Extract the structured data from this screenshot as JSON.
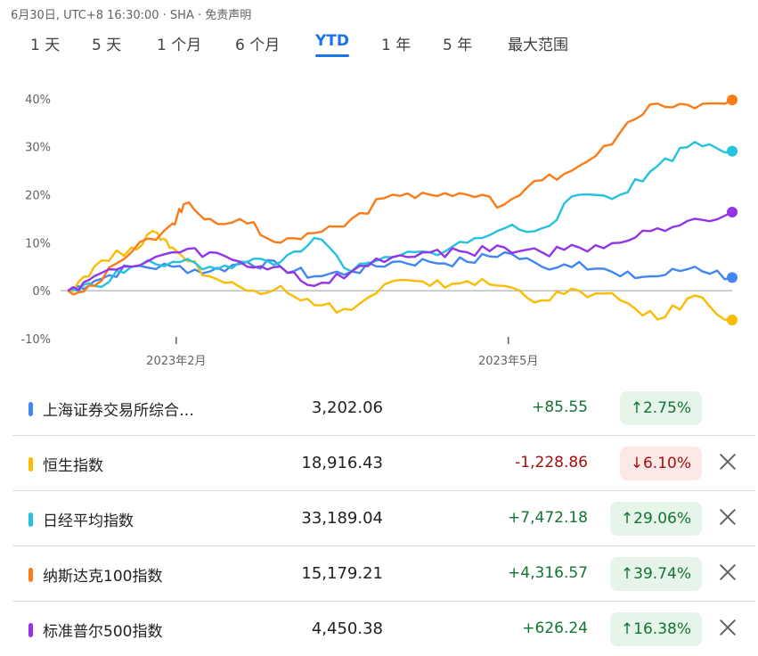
{
  "header": {
    "timestamp": "6月30日, UTC+8 16:30:00 · SHA · 免责声明"
  },
  "tabs": [
    {
      "label": "1 天",
      "active": false
    },
    {
      "label": "5 天",
      "active": false
    },
    {
      "label": "1 个月",
      "active": false
    },
    {
      "label": "6 个月",
      "active": false
    },
    {
      "label": "YTD",
      "active": true
    },
    {
      "label": "1 年",
      "active": false
    },
    {
      "label": "5 年",
      "active": false
    },
    {
      "label": "最大范围",
      "active": false
    }
  ],
  "chart_data": {
    "type": "line",
    "title": "",
    "xlabel": "",
    "ylabel": "",
    "x_ticks": [
      "2023年2月",
      "2023年5月"
    ],
    "y_ticks": [
      "40%",
      "30%",
      "20%",
      "10%",
      "0%",
      "-10%"
    ],
    "ylim": [
      -10,
      42
    ],
    "x_range": [
      "2023-01-01",
      "2023-06-30"
    ],
    "grid": false,
    "series": [
      {
        "name": "上海证券交易所综合指数",
        "color": "#4285f4",
        "x": [
          "2023-01-03",
          "2023-01-10",
          "2023-01-20",
          "2023-01-31",
          "2023-02-10",
          "2023-02-20",
          "2023-03-01",
          "2023-03-10",
          "2023-03-20",
          "2023-03-31",
          "2023-04-10",
          "2023-04-20",
          "2023-04-30",
          "2023-05-10",
          "2023-05-20",
          "2023-05-31",
          "2023-06-10",
          "2023-06-20",
          "2023-06-30"
        ],
        "values": [
          0,
          2,
          5,
          5,
          4,
          6,
          5,
          3,
          4,
          6,
          6,
          6,
          8,
          5,
          6,
          3,
          3,
          5,
          2.75
        ]
      },
      {
        "name": "恒生指数",
        "color": "#fbbc04",
        "x": [
          "2023-01-03",
          "2023-01-10",
          "2023-01-20",
          "2023-01-27",
          "2023-01-31",
          "2023-02-10",
          "2023-02-20",
          "2023-03-01",
          "2023-03-10",
          "2023-03-20",
          "2023-03-31",
          "2023-04-10",
          "2023-04-20",
          "2023-04-30",
          "2023-05-10",
          "2023-05-20",
          "2023-05-31",
          "2023-06-10",
          "2023-06-20",
          "2023-06-30"
        ],
        "values": [
          0,
          5,
          9,
          12,
          9,
          3,
          0,
          1,
          -3,
          -4,
          2,
          1,
          2,
          1,
          -2,
          0,
          -2,
          -6,
          -1,
          -6.1
        ]
      },
      {
        "name": "日经平均指数",
        "color": "#24c1e0",
        "x": [
          "2023-01-03",
          "2023-01-10",
          "2023-01-20",
          "2023-01-31",
          "2023-02-10",
          "2023-02-20",
          "2023-03-01",
          "2023-03-10",
          "2023-03-20",
          "2023-03-31",
          "2023-04-10",
          "2023-04-20",
          "2023-04-30",
          "2023-05-10",
          "2023-05-20",
          "2023-05-31",
          "2023-06-10",
          "2023-06-20",
          "2023-06-30"
        ],
        "values": [
          0,
          1,
          5,
          6,
          5,
          6,
          6,
          11,
          4,
          7,
          8,
          10,
          13,
          13,
          20,
          20,
          26,
          31,
          29.06
        ]
      },
      {
        "name": "纳斯达克100指数",
        "color": "#fa7b17",
        "x": [
          "2023-01-03",
          "2023-01-10",
          "2023-01-20",
          "2023-01-31",
          "2023-02-03",
          "2023-02-10",
          "2023-02-20",
          "2023-03-01",
          "2023-03-10",
          "2023-03-20",
          "2023-03-31",
          "2023-04-10",
          "2023-04-20",
          "2023-04-30",
          "2023-05-10",
          "2023-05-20",
          "2023-05-31",
          "2023-06-10",
          "2023-06-20",
          "2023-06-30"
        ],
        "values": [
          0,
          1,
          8,
          14,
          18,
          15,
          14,
          10,
          12,
          15,
          20,
          20,
          20,
          18,
          23,
          26,
          33,
          39,
          38,
          39.74
        ]
      },
      {
        "name": "标准普尔500指数",
        "color": "#9334e6",
        "x": [
          "2023-01-03",
          "2023-01-10",
          "2023-01-20",
          "2023-01-31",
          "2023-02-10",
          "2023-02-20",
          "2023-03-01",
          "2023-03-10",
          "2023-03-20",
          "2023-03-31",
          "2023-04-10",
          "2023-04-20",
          "2023-04-30",
          "2023-05-10",
          "2023-05-20",
          "2023-05-31",
          "2023-06-10",
          "2023-06-20",
          "2023-06-30"
        ],
        "values": [
          0,
          3,
          5,
          8,
          8,
          5,
          5,
          1,
          4,
          7,
          8,
          8,
          9,
          8,
          9,
          10,
          13,
          15,
          16.38
        ]
      }
    ]
  },
  "rows": [
    {
      "name": "上海证券交易所综合…",
      "color": "#4285f4",
      "price": "3,202.06",
      "change": "+85.55",
      "percent": "2.75%",
      "direction": "up",
      "arrow": "↑",
      "removable": false
    },
    {
      "name": "恒生指数",
      "color": "#fbbc04",
      "price": "18,916.43",
      "change": "-1,228.86",
      "percent": "6.10%",
      "direction": "down",
      "arrow": "↓",
      "removable": true
    },
    {
      "name": "日经平均指数",
      "color": "#24c1e0",
      "price": "33,189.04",
      "change": "+7,472.18",
      "percent": "29.06%",
      "direction": "up",
      "arrow": "↑",
      "removable": true
    },
    {
      "name": "纳斯达克100指数",
      "color": "#fa7b17",
      "price": "15,179.21",
      "change": "+4,316.57",
      "percent": "39.74%",
      "direction": "up",
      "arrow": "↑",
      "removable": true
    },
    {
      "name": "标准普尔500指数",
      "color": "#9334e6",
      "price": "4,450.38",
      "change": "+626.24",
      "percent": "16.38%",
      "direction": "up",
      "arrow": "↑",
      "removable": true
    }
  ]
}
